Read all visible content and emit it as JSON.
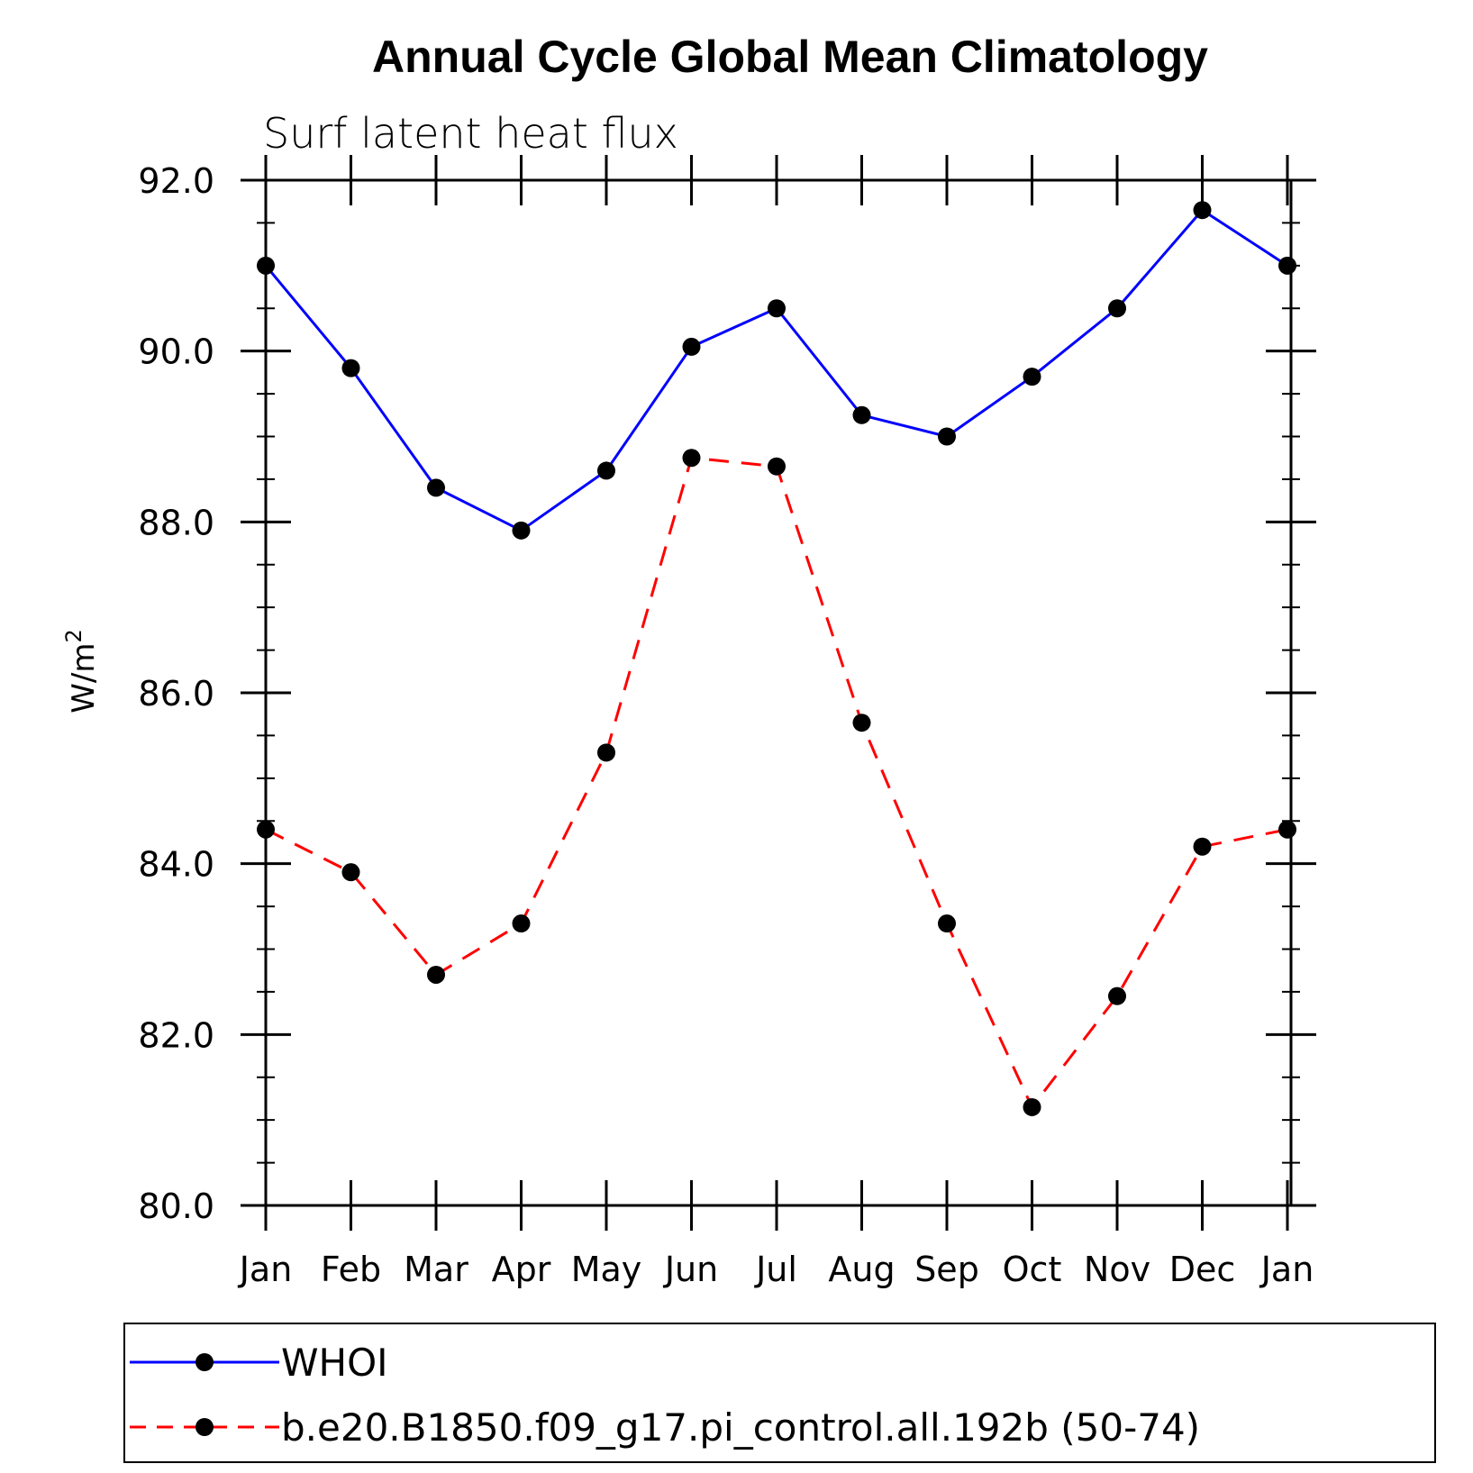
{
  "chart_data": {
    "type": "line",
    "title": "Annual Cycle Global Mean Climatology",
    "subtitle": "Surf latent heat flux",
    "xlabel": "",
    "ylabel": "W/m",
    "ylabel_superscript": "2",
    "ylim": [
      80.0,
      92.0
    ],
    "yticks": [
      "80.0",
      "82.0",
      "84.0",
      "86.0",
      "88.0",
      "90.0",
      "92.0"
    ],
    "categories": [
      "Jan",
      "Feb",
      "Mar",
      "Apr",
      "May",
      "Jun",
      "Jul",
      "Aug",
      "Sep",
      "Oct",
      "Nov",
      "Dec",
      "Jan"
    ],
    "series": [
      {
        "name": "WHOI",
        "color": "#0000ff",
        "dash": "solid",
        "values": [
          91.0,
          89.8,
          88.4,
          87.9,
          88.6,
          90.05,
          90.5,
          89.25,
          89.0,
          89.7,
          90.5,
          91.65,
          91.0
        ]
      },
      {
        "name": "b.e20.B1850.f09_g17.pi_control.all.192b (50-74)",
        "color": "#ff0000",
        "dash": "dashed",
        "values": [
          84.4,
          83.9,
          82.7,
          83.3,
          85.3,
          88.75,
          88.65,
          85.65,
          83.3,
          81.15,
          82.45,
          84.2,
          84.4
        ]
      }
    ],
    "legend": "bottom"
  }
}
